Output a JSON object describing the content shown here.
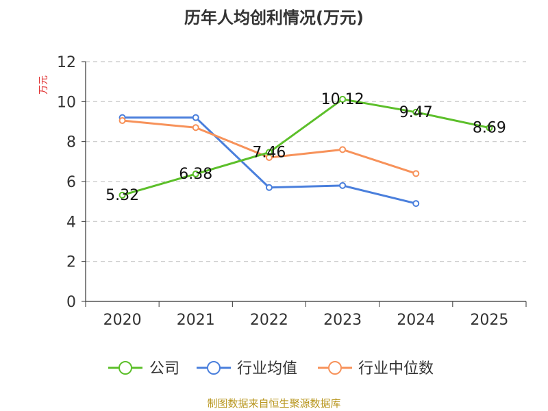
{
  "chart_data": {
    "type": "line",
    "title": "历年人均创利情况(万元)",
    "ylabel": "万元",
    "xlabel": "",
    "categories": [
      "2020",
      "2021",
      "2022",
      "2023",
      "2024",
      "2025"
    ],
    "ylim": [
      0,
      12
    ],
    "yticks": [
      0,
      2,
      4,
      6,
      8,
      10,
      12
    ],
    "grid": true,
    "legend": "bottom",
    "series": [
      {
        "name": "公司",
        "color": "#5cbf2a",
        "values": [
          5.32,
          6.38,
          7.46,
          10.12,
          9.47,
          8.69
        ],
        "labels": [
          "5.32",
          "6.38",
          "7.46",
          "10.12",
          "9.47",
          "8.69"
        ]
      },
      {
        "name": "行业均值",
        "color": "#4a7fdc",
        "values": [
          9.2,
          9.2,
          5.7,
          5.8,
          4.9,
          null
        ]
      },
      {
        "name": "行业中位数",
        "color": "#f7925a",
        "values": [
          9.05,
          8.7,
          7.2,
          7.6,
          6.4,
          null
        ]
      }
    ]
  },
  "source_note": "制图数据来自恒生聚源数据库"
}
